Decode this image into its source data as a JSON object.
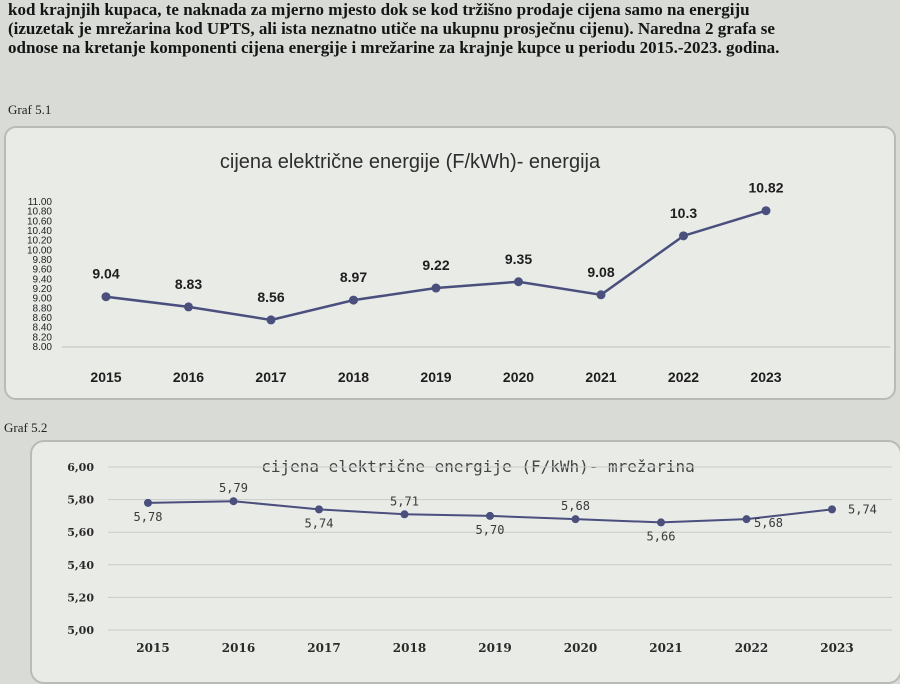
{
  "intro": {
    "line1": "kod krajnjih kupaca, te naknada za mjerno mjesto dok se kod tržišno prodaje cijena samo na energiju",
    "line2": "(izuzetak je mrežarina kod UPTS, ali ista neznatno utiče na ukupnu prosječnu cijenu). Naredna 2 grafa se",
    "line3": "odnose na kretanje komponenti cijena energije i mrežarine za krajnje kupce u periodu 2015.-2023. godina."
  },
  "graf1_label": "Graf 5.1",
  "graf2_label": "Graf 5.2",
  "colors": {
    "line": "#4a4f7d",
    "grid": "#c9ccc6"
  },
  "chart_data": [
    {
      "type": "line",
      "title": "cijena električne energije (F/kWh)- energija",
      "categories": [
        "2015",
        "2016",
        "2017",
        "2018",
        "2019",
        "2020",
        "2021",
        "2022",
        "2023"
      ],
      "values": [
        9.04,
        8.83,
        8.56,
        8.97,
        9.22,
        9.35,
        9.08,
        10.3,
        10.82
      ],
      "value_labels": [
        "9.04",
        "8.83",
        "8.56",
        "8.97",
        "9.22",
        "9.35",
        "9.08",
        "10.3",
        "10.82"
      ],
      "y_ticks": [
        "8.00",
        "8.20",
        "8.40",
        "8.60",
        "8.80",
        "9.00",
        "9.20",
        "9.40",
        "9.60",
        "9.80",
        "10.00",
        "10.20",
        "10.40",
        "10.60",
        "10.80",
        "11.00"
      ],
      "ylim": [
        8.0,
        11.0
      ],
      "grid": false,
      "legend": "none"
    },
    {
      "type": "line",
      "title": "cijena električne energije (F/kWh)- mrežarina",
      "categories": [
        "2015",
        "2016",
        "2017",
        "2018",
        "2019",
        "2020",
        "2021",
        "2022",
        "2023"
      ],
      "values": [
        5.78,
        5.79,
        5.74,
        5.71,
        5.7,
        5.68,
        5.66,
        5.68,
        5.74
      ],
      "value_labels": [
        "5,78",
        "5,79",
        "5,74",
        "5,71",
        "5,70",
        "5,68",
        "5,66",
        "5,68",
        "5,74"
      ],
      "y_ticks": [
        "5,00",
        "5,20",
        "5,40",
        "5,60",
        "5,80",
        "6,00"
      ],
      "ylim": [
        5.0,
        6.0
      ],
      "grid": true,
      "legend": "none"
    }
  ]
}
